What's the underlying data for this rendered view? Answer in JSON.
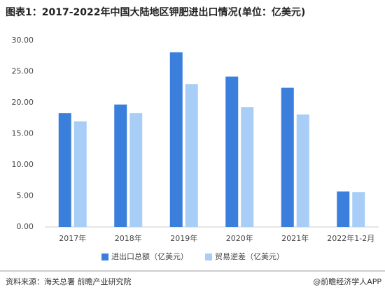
{
  "chart_data": {
    "type": "bar",
    "title": "图表1：2017-2022年中国大陆地区钾肥进出口情况(单位：亿美元)",
    "categories": [
      "2017年",
      "2018年",
      "2019年",
      "2020年",
      "2021年",
      "2022年1-2月"
    ],
    "series": [
      {
        "name": "进出口总额（亿美元）",
        "color": "#3a7fdc",
        "values": [
          18.3,
          19.7,
          28.1,
          24.2,
          22.4,
          5.7
        ]
      },
      {
        "name": "贸易逆差（亿美元）",
        "color": "#a8cdf6",
        "values": [
          17.0,
          18.3,
          23.0,
          19.3,
          18.1,
          5.6
        ]
      }
    ],
    "ylim": [
      0,
      30
    ],
    "yticks": [
      {
        "value": 0,
        "label": "0.00"
      },
      {
        "value": 5,
        "label": "5.00"
      },
      {
        "value": 10,
        "label": "10.00"
      },
      {
        "value": 15,
        "label": "15.00"
      },
      {
        "value": 20,
        "label": "20.00"
      },
      {
        "value": 25,
        "label": "25.00"
      },
      {
        "value": 30,
        "label": "30.00"
      }
    ],
    "grid": false,
    "legend": "bottom",
    "source": "资料来源：海关总署 前瞻产业研究院",
    "credit": "@前瞻经济学人APP"
  }
}
